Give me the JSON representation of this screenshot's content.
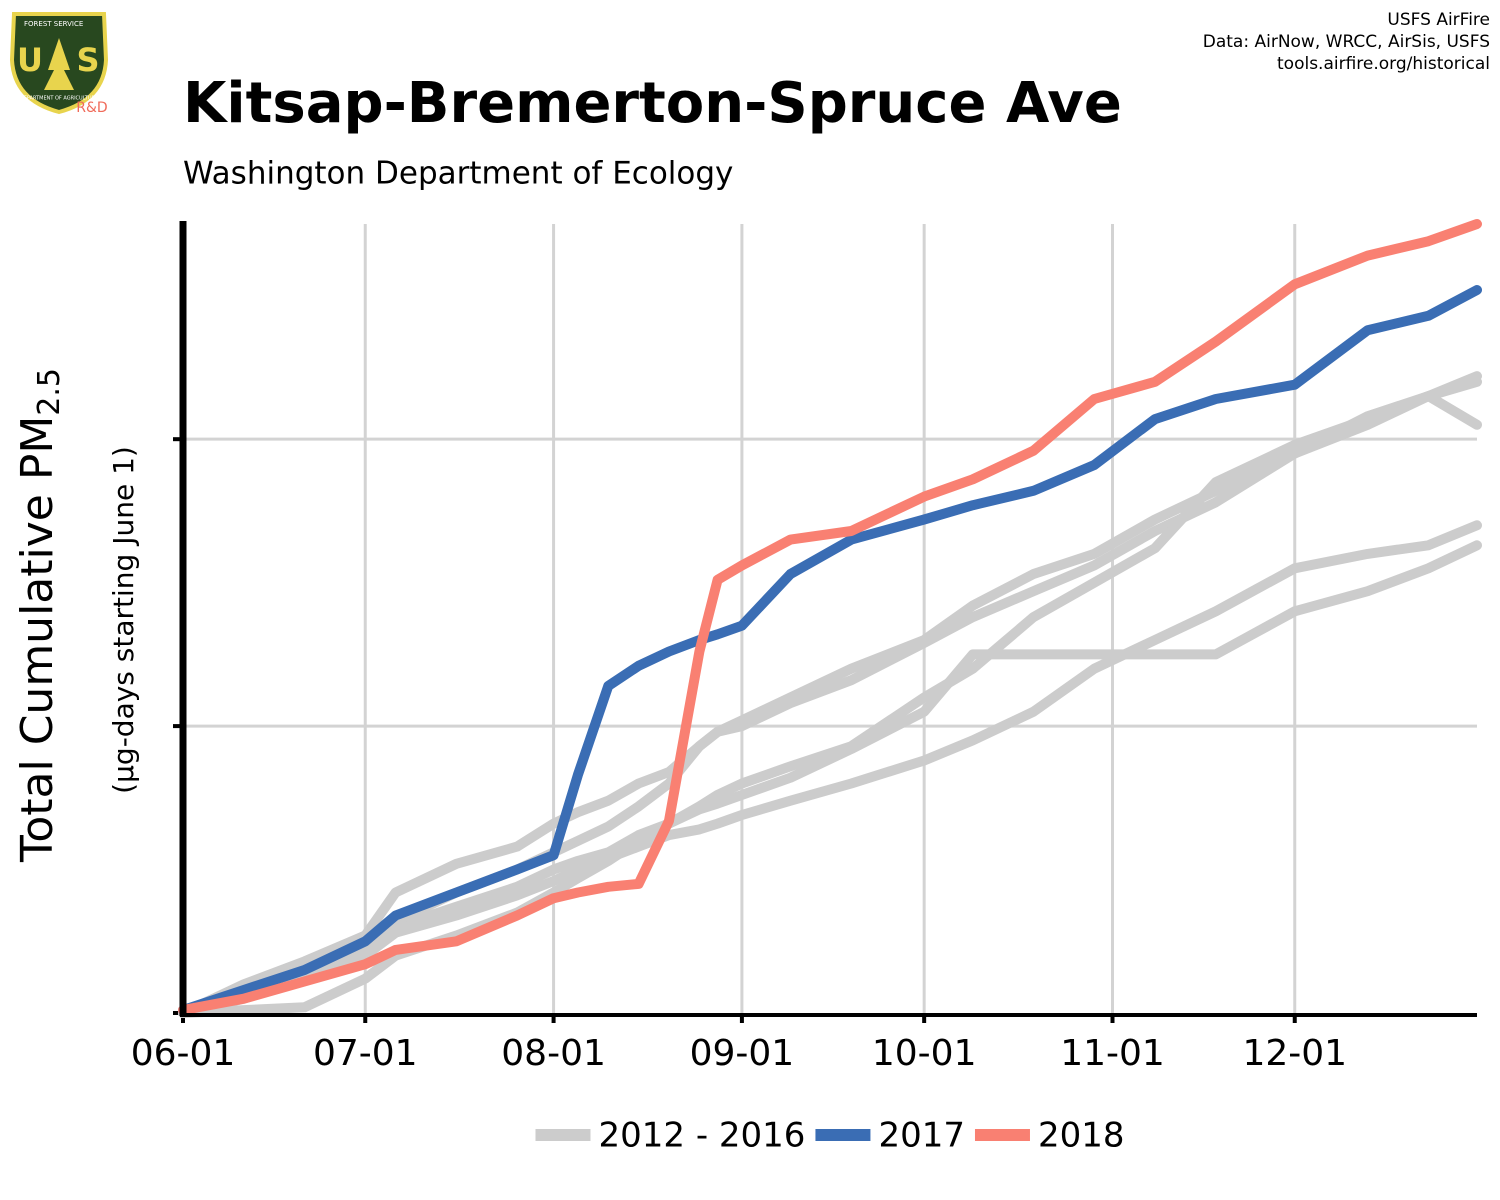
{
  "chart_data": {
    "type": "line",
    "title": "Kitsap-Bremerton-Spruce Ave",
    "subtitle": "Washington Department of Ecology",
    "ylabel": "Total Cumulative PM",
    "ylabel_subscript": "2.5",
    "ylabel_note": "(µg-days starting June 1)",
    "credits": [
      "USFS AirFire",
      "Data: AirNow, WRCC, AirSis, USFS",
      "tools.airfire.org/historical"
    ],
    "logo": {
      "top": "FOREST SERVICE",
      "left": "U",
      "right": "S",
      "bottom": "DEPARTMENT OF AGRICULTURE",
      "tag": "R&D"
    },
    "x": [
      0,
      10,
      20,
      30,
      35,
      45,
      55,
      61,
      65,
      70,
      75,
      80,
      85,
      88,
      92,
      100,
      110,
      122,
      130,
      140,
      150,
      160,
      170,
      183,
      195,
      205,
      213
    ],
    "xlim": [
      0,
      213
    ],
    "xticks": [
      {
        "value": 0,
        "label": "06-01"
      },
      {
        "value": 30,
        "label": "07-01"
      },
      {
        "value": 61,
        "label": "08-01"
      },
      {
        "value": 92,
        "label": "09-01"
      },
      {
        "value": 122,
        "label": "10-01"
      },
      {
        "value": 153,
        "label": "11-01"
      },
      {
        "value": 183,
        "label": "12-01"
      }
    ],
    "ylim": [
      0,
      2.75
    ],
    "yticks": [
      0,
      1,
      2
    ],
    "ytick_labels": false,
    "grid": true,
    "series": [
      {
        "name": "2012 - 2016",
        "color": "#cccccc",
        "values": [
          0,
          0.1,
          0.18,
          0.27,
          0.42,
          0.52,
          0.58,
          0.66,
          0.7,
          0.74,
          0.8,
          0.84,
          0.93,
          0.98,
          1.0,
          1.08,
          1.16,
          1.29,
          1.38,
          1.47,
          1.56,
          1.68,
          1.78,
          1.95,
          2.05,
          2.15,
          2.2
        ]
      },
      {
        "color": "#cccccc",
        "values": [
          0,
          0.07,
          0.14,
          0.22,
          0.3,
          0.37,
          0.44,
          0.5,
          0.53,
          0.56,
          0.62,
          0.66,
          0.71,
          0.73,
          0.76,
          0.82,
          0.92,
          1.05,
          1.25,
          1.25,
          1.25,
          1.25,
          1.25,
          1.4,
          1.47,
          1.55,
          1.63
        ]
      },
      {
        "color": "#cccccc",
        "values": [
          0,
          0.01,
          0.02,
          0.12,
          0.2,
          0.27,
          0.35,
          0.42,
          0.47,
          0.53,
          0.6,
          0.66,
          0.72,
          0.76,
          0.8,
          0.86,
          0.93,
          1.1,
          1.2,
          1.38,
          1.5,
          1.62,
          1.85,
          1.98,
          2.07,
          2.15,
          2.05
        ]
      },
      {
        "color": "#cccccc",
        "values": [
          0,
          0.05,
          0.12,
          0.2,
          0.28,
          0.34,
          0.41,
          0.46,
          0.5,
          0.54,
          0.58,
          0.62,
          0.64,
          0.66,
          0.69,
          0.74,
          0.8,
          0.88,
          0.95,
          1.05,
          1.2,
          1.3,
          1.4,
          1.55,
          1.6,
          1.63,
          1.7
        ]
      },
      {
        "color": "#cccccc",
        "values": [
          0,
          0.09,
          0.17,
          0.27,
          0.32,
          0.42,
          0.5,
          0.56,
          0.6,
          0.65,
          0.72,
          0.8,
          0.93,
          0.98,
          1.02,
          1.1,
          1.2,
          1.3,
          1.42,
          1.53,
          1.6,
          1.72,
          1.82,
          1.95,
          2.08,
          2.15,
          2.22
        ]
      },
      {
        "name": "2017",
        "color": "#3a6db4",
        "values": [
          0.01,
          0.08,
          0.15,
          0.25,
          0.34,
          0.42,
          0.5,
          0.55,
          0.83,
          1.14,
          1.21,
          1.26,
          1.3,
          1.32,
          1.35,
          1.53,
          1.65,
          1.72,
          1.77,
          1.82,
          1.91,
          2.07,
          2.14,
          2.19,
          2.38,
          2.43,
          2.52
        ]
      },
      {
        "name": "2018",
        "color": "#f98072",
        "values": [
          0.01,
          0.05,
          0.11,
          0.17,
          0.22,
          0.25,
          0.34,
          0.4,
          0.42,
          0.44,
          0.45,
          0.67,
          1.26,
          1.51,
          1.56,
          1.65,
          1.68,
          1.8,
          1.86,
          1.96,
          2.14,
          2.2,
          2.34,
          2.54,
          2.64,
          2.69,
          2.75
        ]
      }
    ]
  }
}
